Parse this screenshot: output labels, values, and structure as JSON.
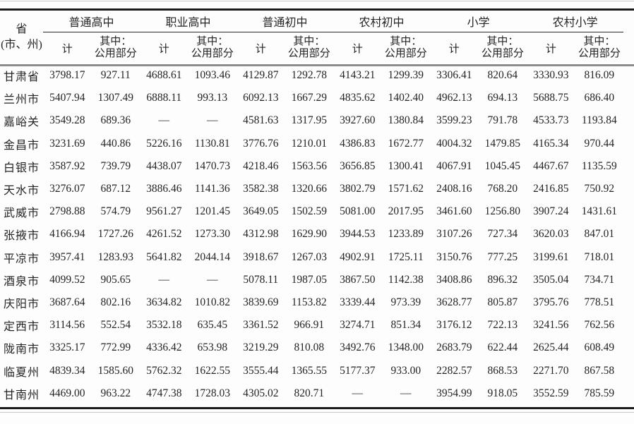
{
  "table": {
    "corner": {
      "line1": "省",
      "line2": "(市、州)"
    },
    "groups": [
      {
        "label": "普通高中"
      },
      {
        "label": "职业高中"
      },
      {
        "label": "普通初中"
      },
      {
        "label": "农村初中"
      },
      {
        "label": "小学"
      },
      {
        "label": "农村小学"
      }
    ],
    "sub": {
      "total": "计",
      "note_line1": "其中：",
      "note_line2": "公用部分"
    },
    "missing_value_symbol": "—",
    "rows": [
      {
        "region": "甘肃省",
        "values": [
          "3798.17",
          "927.11",
          "4688.61",
          "1093.46",
          "4129.87",
          "1292.78",
          "4143.21",
          "1299.39",
          "3306.41",
          "820.64",
          "3330.93",
          "816.09"
        ]
      },
      {
        "region": "兰州市",
        "values": [
          "5407.94",
          "1307.49",
          "6888.11",
          "993.13",
          "6092.13",
          "1667.29",
          "4835.62",
          "1402.40",
          "4962.13",
          "694.13",
          "5688.75",
          "686.40"
        ]
      },
      {
        "region": "嘉峪关",
        "values": [
          "3549.28",
          "689.36",
          "—",
          "—",
          "4581.63",
          "1317.95",
          "3927.60",
          "1380.84",
          "3599.23",
          "791.78",
          "4533.73",
          "1193.84"
        ]
      },
      {
        "region": "金昌市",
        "values": [
          "3231.69",
          "440.86",
          "5226.16",
          "1130.81",
          "3776.76",
          "1210.01",
          "4386.83",
          "1672.77",
          "4004.32",
          "1479.85",
          "4165.34",
          "970.44"
        ]
      },
      {
        "region": "白银市",
        "values": [
          "3587.92",
          "739.79",
          "4438.07",
          "1470.73",
          "4218.46",
          "1563.56",
          "3656.85",
          "1300.41",
          "4067.91",
          "1045.45",
          "4467.67",
          "1135.59"
        ]
      },
      {
        "region": "天水市",
        "values": [
          "3276.07",
          "687.12",
          "3886.46",
          "1141.36",
          "3582.38",
          "1320.66",
          "3802.79",
          "1571.62",
          "2408.16",
          "768.20",
          "2416.85",
          "750.92"
        ]
      },
      {
        "region": "武威市",
        "values": [
          "2798.88",
          "574.79",
          "9561.27",
          "1201.45",
          "3649.05",
          "1502.59",
          "5081.00",
          "2017.95",
          "3461.60",
          "1256.80",
          "3907.24",
          "1431.61"
        ]
      },
      {
        "region": "张掖市",
        "values": [
          "4166.94",
          "1727.26",
          "4261.52",
          "1273.30",
          "4312.98",
          "1629.90",
          "3944.53",
          "1233.89",
          "3107.26",
          "727.34",
          "3620.03",
          "847.01"
        ]
      },
      {
        "region": "平凉市",
        "values": [
          "3957.41",
          "1283.93",
          "5641.82",
          "2044.14",
          "3918.67",
          "1267.03",
          "4902.91",
          "1725.11",
          "3150.76",
          "777.25",
          "3199.61",
          "718.01"
        ]
      },
      {
        "region": "酒泉市",
        "values": [
          "4099.52",
          "905.65",
          "—",
          "—",
          "5078.11",
          "1987.05",
          "3867.50",
          "1142.38",
          "3408.86",
          "896.32",
          "3505.04",
          "734.71"
        ]
      },
      {
        "region": "庆阳市",
        "values": [
          "3687.64",
          "802.16",
          "3634.82",
          "1010.82",
          "3839.69",
          "1153.82",
          "3339.44",
          "973.39",
          "3628.77",
          "805.87",
          "3795.76",
          "778.51"
        ]
      },
      {
        "region": "定西市",
        "values": [
          "3114.56",
          "552.54",
          "3532.18",
          "635.45",
          "3361.52",
          "966.91",
          "3274.71",
          "851.34",
          "3176.12",
          "722.13",
          "3241.56",
          "762.56"
        ]
      },
      {
        "region": "陇南市",
        "values": [
          "3325.17",
          "772.99",
          "4336.42",
          "653.98",
          "3219.29",
          "810.08",
          "3492.76",
          "1348.00",
          "2683.79",
          "622.44",
          "2625.44",
          "608.49"
        ]
      },
      {
        "region": "临夏州",
        "values": [
          "4839.34",
          "1585.60",
          "5762.32",
          "1622.55",
          "3555.44",
          "1365.55",
          "5177.37",
          "933.00",
          "2282.57",
          "868.53",
          "2271.70",
          "867.58"
        ]
      },
      {
        "region": "甘南州",
        "values": [
          "4469.00",
          "963.22",
          "4747.38",
          "1728.03",
          "4305.02",
          "820.71",
          "—",
          "—",
          "3954.99",
          "918.05",
          "3552.59",
          "785.59"
        ]
      }
    ]
  }
}
